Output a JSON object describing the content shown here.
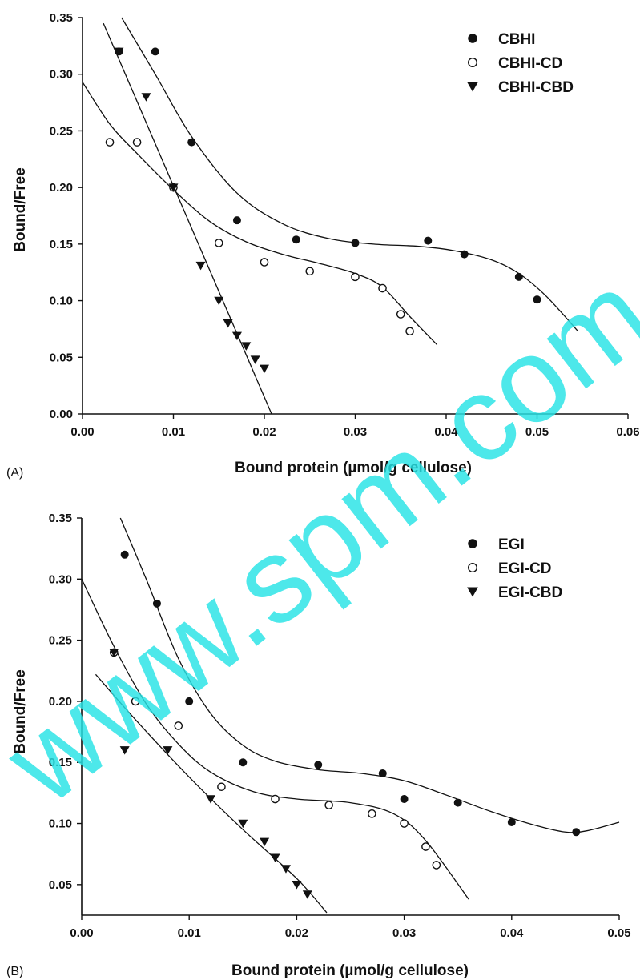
{
  "watermark": "www.spm.com.cn",
  "colors": {
    "ink": "#111111",
    "watermark": "#27e3e6",
    "background": "#ffffff"
  },
  "chart_data": [
    {
      "type": "scatter",
      "panel_label": "(A)",
      "xlabel": "Bound protein (µmol/g cellulose)",
      "ylabel": "Bound/Free",
      "xlim": [
        0,
        0.06
      ],
      "ylim": [
        0,
        0.35
      ],
      "x_ticks": [
        "0.00",
        "0.01",
        "0.02",
        "0.03",
        "0.04",
        "0.05",
        "0.06"
      ],
      "y_ticks": [
        "0.00",
        "0.05",
        "0.10",
        "0.15",
        "0.20",
        "0.25",
        "0.30",
        "0.35"
      ],
      "legend_position": "top-right",
      "series": [
        {
          "name": "CBHI",
          "marker": "filled-circle",
          "points": [
            [
              0.004,
              0.32
            ],
            [
              0.008,
              0.32
            ],
            [
              0.012,
              0.24
            ],
            [
              0.017,
              0.171
            ],
            [
              0.0235,
              0.154
            ],
            [
              0.03,
              0.151
            ],
            [
              0.038,
              0.153
            ],
            [
              0.042,
              0.141
            ],
            [
              0.048,
              0.121
            ],
            [
              0.05,
              0.101
            ]
          ],
          "fit": [
            [
              0.0043,
              0.35
            ],
            [
              0.008,
              0.3
            ],
            [
              0.012,
              0.245
            ],
            [
              0.017,
              0.195
            ],
            [
              0.022,
              0.168
            ],
            [
              0.027,
              0.155
            ],
            [
              0.032,
              0.15
            ],
            [
              0.037,
              0.148
            ],
            [
              0.041,
              0.144
            ],
            [
              0.045,
              0.136
            ],
            [
              0.048,
              0.124
            ],
            [
              0.051,
              0.104
            ],
            [
              0.0545,
              0.073
            ]
          ]
        },
        {
          "name": "CBHI-CD",
          "marker": "open-circle",
          "points": [
            [
              0.003,
              0.24
            ],
            [
              0.006,
              0.24
            ],
            [
              0.01,
              0.2
            ],
            [
              0.015,
              0.151
            ],
            [
              0.02,
              0.134
            ],
            [
              0.025,
              0.126
            ],
            [
              0.03,
              0.121
            ],
            [
              0.033,
              0.111
            ],
            [
              0.035,
              0.088
            ],
            [
              0.036,
              0.073
            ]
          ],
          "fit": [
            [
              0.0,
              0.293
            ],
            [
              0.003,
              0.256
            ],
            [
              0.006,
              0.23
            ],
            [
              0.01,
              0.198
            ],
            [
              0.014,
              0.17
            ],
            [
              0.018,
              0.152
            ],
            [
              0.022,
              0.141
            ],
            [
              0.026,
              0.133
            ],
            [
              0.03,
              0.124
            ],
            [
              0.033,
              0.112
            ],
            [
              0.036,
              0.086
            ],
            [
              0.039,
              0.061
            ]
          ]
        },
        {
          "name": "CBHI-CBD",
          "marker": "filled-triangle-down",
          "points": [
            [
              0.004,
              0.32
            ],
            [
              0.007,
              0.28
            ],
            [
              0.01,
              0.2
            ],
            [
              0.013,
              0.131
            ],
            [
              0.015,
              0.1
            ],
            [
              0.016,
              0.08
            ],
            [
              0.017,
              0.069
            ],
            [
              0.018,
              0.06
            ],
            [
              0.019,
              0.048
            ],
            [
              0.02,
              0.04
            ]
          ],
          "fit": [
            [
              0.0023,
              0.345
            ],
            [
              0.0208,
              0.0
            ]
          ]
        }
      ]
    },
    {
      "type": "scatter",
      "panel_label": "(B)",
      "xlabel": "Bound protein (µmol/g cellulose)",
      "ylabel": "Bound/Free",
      "xlim": [
        0,
        0.05
      ],
      "ylim": [
        0.025,
        0.35
      ],
      "x_ticks": [
        "0.00",
        "0.01",
        "0.02",
        "0.03",
        "0.04",
        "0.05"
      ],
      "y_ticks": [
        "0.05",
        "0.10",
        "0.15",
        "0.20",
        "0.25",
        "0.30",
        "0.35"
      ],
      "legend_position": "top-right",
      "series": [
        {
          "name": "EGI",
          "marker": "filled-circle",
          "points": [
            [
              0.004,
              0.32
            ],
            [
              0.007,
              0.28
            ],
            [
              0.01,
              0.2
            ],
            [
              0.015,
              0.15
            ],
            [
              0.022,
              0.148
            ],
            [
              0.028,
              0.141
            ],
            [
              0.03,
              0.12
            ],
            [
              0.035,
              0.117
            ],
            [
              0.04,
              0.101
            ],
            [
              0.046,
              0.093
            ]
          ],
          "fit": [
            [
              0.0036,
              0.35
            ],
            [
              0.006,
              0.3
            ],
            [
              0.009,
              0.235
            ],
            [
              0.012,
              0.19
            ],
            [
              0.015,
              0.164
            ],
            [
              0.018,
              0.151
            ],
            [
              0.022,
              0.144
            ],
            [
              0.026,
              0.141
            ],
            [
              0.03,
              0.135
            ],
            [
              0.034,
              0.123
            ],
            [
              0.038,
              0.11
            ],
            [
              0.042,
              0.099
            ],
            [
              0.045,
              0.093
            ],
            [
              0.047,
              0.094
            ],
            [
              0.05,
              0.101
            ]
          ]
        },
        {
          "name": "EGI-CD",
          "marker": "open-circle",
          "points": [
            [
              0.003,
              0.24
            ],
            [
              0.005,
              0.2
            ],
            [
              0.009,
              0.18
            ],
            [
              0.013,
              0.13
            ],
            [
              0.018,
              0.12
            ],
            [
              0.023,
              0.115
            ],
            [
              0.027,
              0.108
            ],
            [
              0.03,
              0.1
            ],
            [
              0.032,
              0.081
            ],
            [
              0.033,
              0.066
            ]
          ],
          "fit": [
            [
              0.0,
              0.3
            ],
            [
              0.003,
              0.245
            ],
            [
              0.006,
              0.198
            ],
            [
              0.009,
              0.165
            ],
            [
              0.012,
              0.142
            ],
            [
              0.016,
              0.126
            ],
            [
              0.02,
              0.12
            ],
            [
              0.025,
              0.117
            ],
            [
              0.029,
              0.108
            ],
            [
              0.032,
              0.086
            ],
            [
              0.036,
              0.038
            ]
          ]
        },
        {
          "name": "EGI-CBD",
          "marker": "filled-triangle-down",
          "points": [
            [
              0.003,
              0.24
            ],
            [
              0.004,
              0.16
            ],
            [
              0.008,
              0.16
            ],
            [
              0.012,
              0.12
            ],
            [
              0.015,
              0.1
            ],
            [
              0.017,
              0.085
            ],
            [
              0.018,
              0.072
            ],
            [
              0.019,
              0.063
            ],
            [
              0.02,
              0.05
            ],
            [
              0.021,
              0.042
            ]
          ],
          "fit": [
            [
              0.0013,
              0.222
            ],
            [
              0.005,
              0.185
            ],
            [
              0.01,
              0.138
            ],
            [
              0.015,
              0.095
            ],
            [
              0.02,
              0.055
            ],
            [
              0.0228,
              0.027
            ]
          ]
        }
      ]
    }
  ]
}
